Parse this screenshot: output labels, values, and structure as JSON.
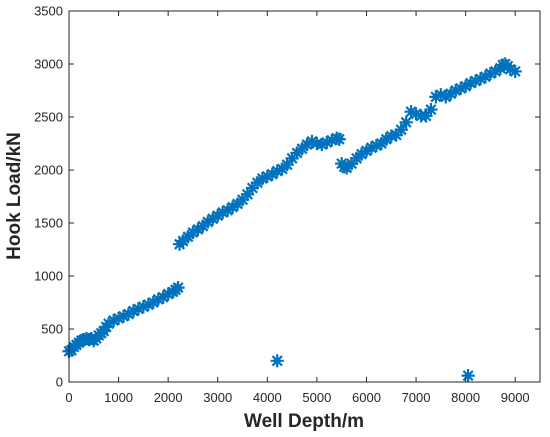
{
  "chart_data": {
    "type": "scatter",
    "title": "",
    "xlabel": "Well Depth/m",
    "ylabel": "Hook Load/kN",
    "xlim": [
      0,
      9500
    ],
    "ylim": [
      0,
      3500
    ],
    "xticks": [
      0,
      1000,
      2000,
      3000,
      4000,
      5000,
      6000,
      7000,
      8000,
      9000
    ],
    "yticks": [
      0,
      500,
      1000,
      1500,
      2000,
      2500,
      3000,
      3500
    ],
    "grid": false,
    "legend": "none",
    "marker": "asterisk",
    "series": [
      {
        "color": "#0072BD",
        "points": [
          [
            0,
            290
          ],
          [
            50,
            300
          ],
          [
            100,
            330
          ],
          [
            150,
            350
          ],
          [
            200,
            370
          ],
          [
            250,
            390
          ],
          [
            300,
            400
          ],
          [
            350,
            410
          ],
          [
            400,
            400
          ],
          [
            450,
            410
          ],
          [
            500,
            390
          ],
          [
            550,
            410
          ],
          [
            600,
            440
          ],
          [
            650,
            460
          ],
          [
            700,
            480
          ],
          [
            750,
            520
          ],
          [
            800,
            550
          ],
          [
            900,
            580
          ],
          [
            1000,
            600
          ],
          [
            1100,
            620
          ],
          [
            1200,
            640
          ],
          [
            1300,
            670
          ],
          [
            1400,
            690
          ],
          [
            1500,
            710
          ],
          [
            1600,
            730
          ],
          [
            1700,
            750
          ],
          [
            1800,
            780
          ],
          [
            1900,
            800
          ],
          [
            2000,
            830
          ],
          [
            2100,
            850
          ],
          [
            2150,
            870
          ],
          [
            2200,
            890
          ],
          [
            2230,
            1300
          ],
          [
            2300,
            1330
          ],
          [
            2400,
            1370
          ],
          [
            2500,
            1410
          ],
          [
            2600,
            1440
          ],
          [
            2700,
            1470
          ],
          [
            2800,
            1510
          ],
          [
            2900,
            1540
          ],
          [
            3000,
            1570
          ],
          [
            3100,
            1600
          ],
          [
            3200,
            1620
          ],
          [
            3300,
            1650
          ],
          [
            3400,
            1680
          ],
          [
            3500,
            1720
          ],
          [
            3600,
            1770
          ],
          [
            3700,
            1830
          ],
          [
            3800,
            1880
          ],
          [
            3900,
            1920
          ],
          [
            4000,
            1940
          ],
          [
            4100,
            1960
          ],
          [
            4200,
            1990
          ],
          [
            4300,
            2010
          ],
          [
            4400,
            2050
          ],
          [
            4500,
            2110
          ],
          [
            4600,
            2160
          ],
          [
            4700,
            2200
          ],
          [
            4800,
            2240
          ],
          [
            4900,
            2270
          ],
          [
            5000,
            2250
          ],
          [
            5100,
            2240
          ],
          [
            5200,
            2260
          ],
          [
            5300,
            2280
          ],
          [
            5400,
            2300
          ],
          [
            5450,
            2290
          ],
          [
            5500,
            2060
          ],
          [
            5550,
            2030
          ],
          [
            5600,
            2020
          ],
          [
            5700,
            2060
          ],
          [
            5800,
            2110
          ],
          [
            5900,
            2150
          ],
          [
            6000,
            2180
          ],
          [
            6100,
            2210
          ],
          [
            6200,
            2230
          ],
          [
            6300,
            2250
          ],
          [
            6400,
            2290
          ],
          [
            6500,
            2320
          ],
          [
            6600,
            2330
          ],
          [
            6700,
            2380
          ],
          [
            6800,
            2450
          ],
          [
            6900,
            2550
          ],
          [
            7000,
            2530
          ],
          [
            7100,
            2510
          ],
          [
            7200,
            2510
          ],
          [
            7300,
            2570
          ],
          [
            7400,
            2690
          ],
          [
            7500,
            2710
          ],
          [
            7600,
            2690
          ],
          [
            7700,
            2720
          ],
          [
            7800,
            2750
          ],
          [
            7900,
            2770
          ],
          [
            8000,
            2790
          ],
          [
            8100,
            2820
          ],
          [
            8200,
            2840
          ],
          [
            8300,
            2860
          ],
          [
            8400,
            2880
          ],
          [
            8500,
            2910
          ],
          [
            8600,
            2930
          ],
          [
            8700,
            2960
          ],
          [
            8750,
            2990
          ],
          [
            8800,
            3000
          ],
          [
            8850,
            2980
          ],
          [
            8900,
            2950
          ],
          [
            9000,
            2930
          ],
          [
            4200,
            200
          ],
          [
            8050,
            60
          ]
        ]
      }
    ]
  }
}
